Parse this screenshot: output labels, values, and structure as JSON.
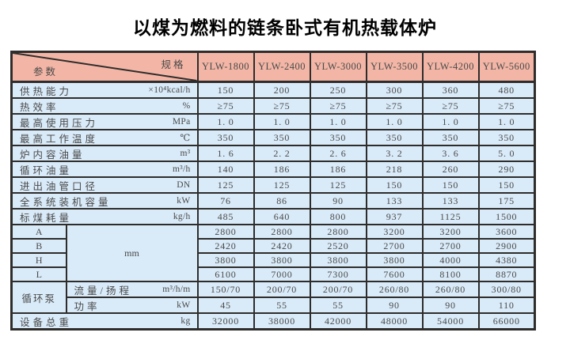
{
  "page_title": "以煤为燃料的链条卧式有机热载体炉",
  "colors": {
    "header_bg": "#f3b6a6",
    "body_bg": "#d9eaf8",
    "border": "#2e2d2c",
    "text": "#474747",
    "title": "#000000"
  },
  "table": {
    "corner": {
      "spec_label": "规格",
      "param_label": "参数"
    },
    "models": [
      "YLW-1800",
      "YLW-2400",
      "YLW-3000",
      "YLW-3500",
      "YLW-4200",
      "YLW-5600"
    ],
    "rows": [
      {
        "kind": "full",
        "label": "供热能力",
        "unit": "×10⁴kcal/h",
        "values": [
          "150",
          "200",
          "250",
          "300",
          "360",
          "480"
        ]
      },
      {
        "kind": "full",
        "label": "热效率",
        "unit": "%",
        "values": [
          "≥75",
          "≥75",
          "≥75",
          "≥75",
          "≥75",
          "≥75"
        ]
      },
      {
        "kind": "full",
        "label": "最高使用压力",
        "unit": "MPa",
        "values": [
          "1. 0",
          "1. 0",
          "1. 0",
          "1. 0",
          "1. 0",
          "1. 0"
        ]
      },
      {
        "kind": "full",
        "label": "最高工作温度",
        "unit": "℃",
        "values": [
          "350",
          "350",
          "350",
          "350",
          "350",
          "350"
        ]
      },
      {
        "kind": "full",
        "label": "炉内容油量",
        "unit": "m³",
        "values": [
          "1. 6",
          "2. 2",
          "2. 6",
          "3. 2",
          "3. 6",
          "5. 0"
        ]
      },
      {
        "kind": "full",
        "label": "循环油量",
        "unit": "m³/h",
        "values": [
          "140",
          "186",
          "186",
          "218",
          "260",
          "290"
        ]
      },
      {
        "kind": "full",
        "label": "进出油管口径",
        "unit": "DN",
        "values": [
          "125",
          "125",
          "125",
          "150",
          "150",
          "150"
        ]
      },
      {
        "kind": "full",
        "label": "全系统装机容量",
        "unit": "kW",
        "values": [
          "76",
          "86",
          "90",
          "133",
          "133",
          "175"
        ]
      },
      {
        "kind": "full",
        "label": "标煤耗量",
        "unit": "kg/h",
        "values": [
          "485",
          "640",
          "800",
          "937",
          "1125",
          "1500"
        ]
      },
      {
        "kind": "dim",
        "letter": "A",
        "merged_unit": {
          "text": "mm",
          "rows": 4
        },
        "values": [
          "2800",
          "2800",
          "2800",
          "3200",
          "3200",
          "3600"
        ]
      },
      {
        "kind": "dim",
        "letter": "B",
        "values": [
          "2420",
          "2420",
          "2520",
          "2700",
          "2700",
          "2900"
        ]
      },
      {
        "kind": "dim",
        "letter": "H",
        "values": [
          "3800",
          "3800",
          "3800",
          "3800",
          "4000",
          "4380"
        ]
      },
      {
        "kind": "dim",
        "letter": "L",
        "values": [
          "6100",
          "7000",
          "7300",
          "7600",
          "8100",
          "8870"
        ]
      },
      {
        "kind": "pump_first",
        "group": "循环泵",
        "group_rows": 2,
        "label": "流量/扬程",
        "unit": "m³/h/m",
        "values": [
          "150/70",
          "200/70",
          "200/70",
          "260/80",
          "260/80",
          "300/80"
        ]
      },
      {
        "kind": "pump_second",
        "label": "功率",
        "unit": "kW",
        "values": [
          "45",
          "55",
          "55",
          "90",
          "90",
          "110"
        ]
      },
      {
        "kind": "full",
        "label": "设备总重",
        "unit": "kg",
        "values": [
          "32000",
          "38000",
          "42000",
          "48000",
          "54000",
          "66000"
        ]
      }
    ]
  }
}
